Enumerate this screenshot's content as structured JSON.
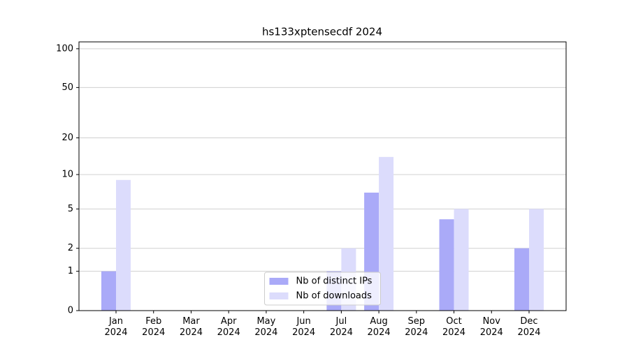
{
  "chart_data": {
    "type": "bar",
    "title": "hs133xptensecdf 2024",
    "categories": [
      "Jan 2024",
      "Feb 2024",
      "Mar 2024",
      "Apr 2024",
      "May 2024",
      "Jun 2024",
      "Jul 2024",
      "Aug 2024",
      "Sep 2024",
      "Oct 2024",
      "Nov 2024",
      "Dec 2024"
    ],
    "series": [
      {
        "name": "Nb of distinct IPs",
        "color": "#aaaaf8",
        "values": [
          1,
          0,
          0,
          0,
          0,
          0,
          1,
          7,
          0,
          4,
          0,
          2
        ]
      },
      {
        "name": "Nb of downloads",
        "color": "#dcdcfc",
        "values": [
          9,
          0,
          0,
          0,
          0,
          0,
          2,
          14,
          0,
          5,
          0,
          5
        ]
      }
    ],
    "yscale": "log1p",
    "ylim": [
      0,
      113
    ],
    "yticks": [
      0,
      1,
      2,
      5,
      10,
      20,
      50,
      100
    ],
    "grid": true,
    "legend": "lower center"
  }
}
